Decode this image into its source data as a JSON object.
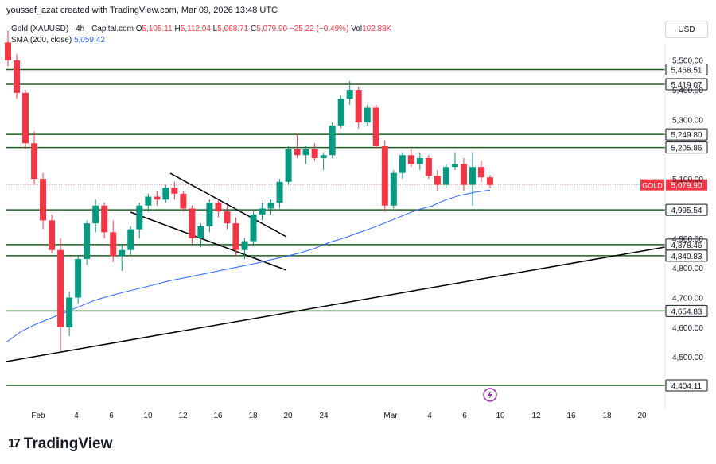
{
  "header": {
    "credit": "youssef_azat created with TradingView.com, Mar 09, 2026 13:48 UTC",
    "symbol": "Gold (XAUUSD) · 4h · Capital.com",
    "ohlc": {
      "o_label": "O",
      "o": "5,105.11",
      "h_label": "H",
      "h": "5,112.04",
      "l_label": "L",
      "l": "5,068.71",
      "c_label": "C",
      "c": "5,079.90",
      "change": "−25.22 (−0.49%)",
      "vol_label": "Vol",
      "vol": "102.88K"
    },
    "sma_label": "SMA (200, close)",
    "sma_value": "5,059.42",
    "currency_button": "USD"
  },
  "brand": {
    "logo": "17",
    "name": "TradingView"
  },
  "colors": {
    "up": "#089981",
    "down": "#f23645",
    "sma": "#2962ff",
    "level_line": "#1b5e20",
    "trendline": "#000000"
  },
  "chart_data": {
    "type": "candlestick",
    "title": "Gold (XAUUSD) · 4h · Capital.com",
    "ylim": [
      4385,
      5640
    ],
    "y_ticks": [
      "4,500.00",
      "4,600.00",
      "4,700.00",
      "4,800.00",
      "4,900.00",
      "5,100.00",
      "5,300.00",
      "5,400.00",
      "5,500.00"
    ],
    "y_tick_values": [
      4500,
      4600,
      4700,
      4800,
      4900,
      5100,
      5300,
      5400,
      5500
    ],
    "x_ticks": [
      "Feb",
      "4",
      "6",
      "10",
      "12",
      "16",
      "18",
      "20",
      "24",
      "Mar",
      "4",
      "6",
      "10",
      "12",
      "16",
      "18",
      "20"
    ],
    "horizontal_levels": [
      {
        "value": 5468.51,
        "label": "5,468.51"
      },
      {
        "value": 5419.07,
        "label": "5,419.07"
      },
      {
        "value": 5249.8,
        "label": "5,249.80"
      },
      {
        "value": 5205.86,
        "label": "5,205.86"
      },
      {
        "value": 4995.54,
        "label": "4,995.54"
      },
      {
        "value": 4878.46,
        "label": "4,878.46"
      },
      {
        "value": 4840.83,
        "label": "4,840.83"
      },
      {
        "value": 4654.83,
        "label": "4,654.83"
      },
      {
        "value": 4404.11,
        "label": "4,404.11"
      }
    ],
    "last_price": {
      "symbol": "GOLD",
      "value": 5079.9,
      "label": "5,079.90"
    },
    "sma_200": [
      4550,
      4585,
      4610,
      4630,
      4650,
      4670,
      4690,
      4705,
      4718,
      4730,
      4742,
      4755,
      4765,
      4775,
      4785,
      4795,
      4805,
      4815,
      4827,
      4838,
      4850,
      4865,
      4885,
      4900,
      4918,
      4935,
      4955,
      4975,
      4995,
      5008,
      5030,
      5045,
      5055,
      5062
    ],
    "candles": [
      [
        5560,
        5600,
        5480,
        5500
      ],
      [
        5500,
        5520,
        5370,
        5390
      ],
      [
        5390,
        5400,
        5200,
        5220
      ],
      [
        5220,
        5260,
        5080,
        5100
      ],
      [
        5100,
        5120,
        4930,
        4960
      ],
      [
        4960,
        4980,
        4850,
        4860
      ],
      [
        4860,
        4900,
        4520,
        4600
      ],
      [
        4600,
        4720,
        4570,
        4700
      ],
      [
        4700,
        4840,
        4680,
        4830
      ],
      [
        4830,
        4960,
        4810,
        4950
      ],
      [
        4950,
        5030,
        4920,
        5010
      ],
      [
        5010,
        5020,
        4900,
        4920
      ],
      [
        4920,
        4960,
        4820,
        4840
      ],
      [
        4840,
        4880,
        4790,
        4860
      ],
      [
        4860,
        4940,
        4840,
        4930
      ],
      [
        4930,
        5020,
        4900,
        5010
      ],
      [
        5010,
        5050,
        4990,
        5040
      ],
      [
        5040,
        5060,
        5010,
        5030
      ],
      [
        5030,
        5080,
        5020,
        5070
      ],
      [
        5070,
        5090,
        5030,
        5050
      ],
      [
        5050,
        5060,
        4990,
        5000
      ],
      [
        5000,
        5010,
        4880,
        4900
      ],
      [
        4900,
        4950,
        4870,
        4940
      ],
      [
        4940,
        5030,
        4920,
        5020
      ],
      [
        5020,
        5030,
        4970,
        4990
      ],
      [
        4990,
        5010,
        4930,
        4950
      ],
      [
        4950,
        4970,
        4840,
        4860
      ],
      [
        4860,
        4900,
        4830,
        4890
      ],
      [
        4890,
        4990,
        4880,
        4980
      ],
      [
        4980,
        5020,
        4960,
        5000
      ],
      [
        5000,
        5030,
        4980,
        5020
      ],
      [
        5020,
        5100,
        5000,
        5090
      ],
      [
        5090,
        5210,
        5080,
        5200
      ],
      [
        5200,
        5250,
        5170,
        5180
      ],
      [
        5180,
        5210,
        5150,
        5200
      ],
      [
        5200,
        5220,
        5160,
        5170
      ],
      [
        5170,
        5190,
        5130,
        5180
      ],
      [
        5180,
        5290,
        5170,
        5280
      ],
      [
        5280,
        5380,
        5270,
        5370
      ],
      [
        5370,
        5430,
        5350,
        5400
      ],
      [
        5400,
        5410,
        5270,
        5290
      ],
      [
        5290,
        5350,
        5280,
        5340
      ],
      [
        5340,
        5350,
        5200,
        5210
      ],
      [
        5210,
        5230,
        4990,
        5010
      ],
      [
        5010,
        5130,
        5000,
        5120
      ],
      [
        5120,
        5190,
        5100,
        5180
      ],
      [
        5180,
        5200,
        5140,
        5150
      ],
      [
        5150,
        5190,
        5130,
        5170
      ],
      [
        5170,
        5180,
        5100,
        5110
      ],
      [
        5110,
        5130,
        5060,
        5080
      ],
      [
        5080,
        5150,
        5070,
        5140
      ],
      [
        5140,
        5190,
        5130,
        5150
      ],
      [
        5150,
        5170,
        5060,
        5080
      ],
      [
        5080,
        5190,
        5010,
        5140
      ],
      [
        5140,
        5160,
        5090,
        5105
      ],
      [
        5105,
        5112,
        5068,
        5080
      ]
    ]
  }
}
